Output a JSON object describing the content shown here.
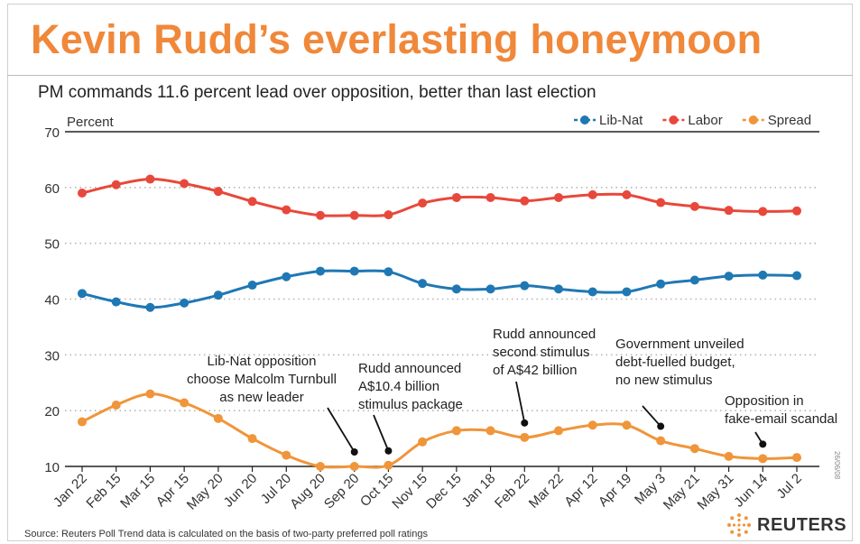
{
  "header": {
    "title": "Kevin Rudd’s everlasting honeymoon",
    "subtitle": "PM commands 11.6 percent lead over opposition, better than last election"
  },
  "footer": {
    "source": "Source: Reuters Poll Trend data is calculated on the basis of two-party preferred poll ratings",
    "logo_text": "REUTERS",
    "side_note": "26/06/08"
  },
  "colors": {
    "lib_nat": "#1f78b4",
    "labor": "#e8483b",
    "spread": "#f0953a",
    "title": "#f0883a"
  },
  "chart_data": {
    "type": "line",
    "ylabel": "Percent",
    "ylim": [
      10,
      70
    ],
    "yticks": [
      10,
      20,
      30,
      40,
      50,
      60,
      70
    ],
    "grid": true,
    "legend_position": "top-right",
    "categories": [
      "Jan 22",
      "Feb 15",
      "Mar 15",
      "Apr 15",
      "May 20",
      "Jun 20",
      "Jul 20",
      "Aug 20",
      "Sep 20",
      "Oct 15",
      "Nov 15",
      "Dec 15",
      "Jan 18",
      "Feb 22",
      "Mar 22",
      "Apr 12",
      "Apr 19",
      "May 3",
      "May 21",
      "May 31",
      "Jun 14",
      "Jul 2"
    ],
    "series": [
      {
        "name": "Lib-Nat",
        "color": "#1f78b4",
        "values": [
          41,
          39.5,
          38.5,
          39.3,
          40.7,
          42.5,
          44,
          45,
          45,
          44.9,
          42.8,
          41.8,
          41.8,
          42.4,
          41.8,
          41.3,
          41.3,
          42.7,
          43.4,
          44.1,
          44.3,
          44.2
        ]
      },
      {
        "name": "Labor",
        "color": "#e8483b",
        "values": [
          59,
          60.5,
          61.5,
          60.7,
          59.3,
          57.5,
          56,
          55,
          55,
          55.1,
          57.2,
          58.2,
          58.2,
          57.6,
          58.2,
          58.7,
          58.7,
          57.3,
          56.6,
          55.9,
          55.7,
          55.8
        ]
      },
      {
        "name": "Spread",
        "color": "#f0953a",
        "values": [
          18,
          21,
          23,
          21.4,
          18.6,
          15,
          12,
          10,
          10,
          10.2,
          14.4,
          16.4,
          16.4,
          15.2,
          16.4,
          17.4,
          17.4,
          14.6,
          13.2,
          11.8,
          11.4,
          11.6
        ]
      }
    ],
    "annotations": [
      {
        "lines": [
          "Lib-Nat opposition",
          "choose Malcolm Turnbull",
          "as new leader"
        ],
        "index": 8,
        "series": "Spread"
      },
      {
        "lines": [
          "Rudd announced",
          "A$10.4 billion",
          "stimulus package"
        ],
        "index": 9,
        "series": "Spread"
      },
      {
        "lines": [
          "Rudd announced",
          "second stimulus",
          "of A$42 billion"
        ],
        "index": 13,
        "series": "Spread"
      },
      {
        "lines": [
          "Government unveiled",
          "debt-fuelled budget,",
          "no new stimulus"
        ],
        "index": 17,
        "series": "Spread"
      },
      {
        "lines": [
          "Opposition in",
          "fake-email scandal"
        ],
        "index": 20,
        "series": "Spread"
      }
    ]
  }
}
